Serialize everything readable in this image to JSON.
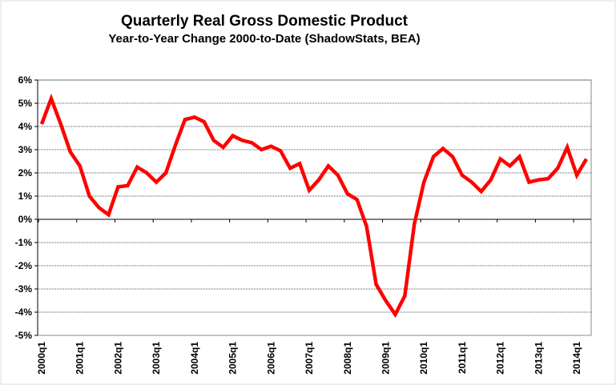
{
  "chart_data": {
    "type": "line",
    "title": "Quarterly Real Gross Domestic Product",
    "subtitle": "Year-to-Year Change 2000-to-Date (ShadowStats, BEA)",
    "xlabel": "",
    "ylabel": "",
    "ylim": [
      -5,
      6
    ],
    "yticks": [
      "-5%",
      "-4%",
      "-3%",
      "-2%",
      "-1%",
      "0%",
      "1%",
      "2%",
      "3%",
      "4%",
      "5%",
      "6%"
    ],
    "xtick_labels": [
      "2000q1",
      "2001q1",
      "2002q1",
      "2003q1",
      "2004q1",
      "2005q1",
      "2006q1",
      "2007q1",
      "2008q1",
      "2009q1",
      "2010q1",
      "2011q1",
      "2012q1",
      "2013q1",
      "2014q1"
    ],
    "grid": true,
    "line_color": "#ff0000",
    "series": [
      {
        "x_start": "2000q1",
        "x_end": "2014q2",
        "values": [
          4.1,
          5.2,
          4.1,
          2.9,
          2.3,
          1.0,
          0.5,
          0.2,
          1.4,
          1.45,
          2.25,
          2.0,
          1.6,
          2.0,
          3.2,
          4.3,
          4.4,
          4.2,
          3.4,
          3.1,
          3.6,
          3.4,
          3.3,
          3.0,
          3.15,
          2.95,
          2.2,
          2.4,
          1.25,
          1.7,
          2.3,
          1.9,
          1.1,
          0.85,
          -0.3,
          -2.8,
          -3.5,
          -4.1,
          -3.3,
          -0.2,
          1.6,
          2.7,
          3.05,
          2.7,
          1.9,
          1.6,
          1.2,
          1.7,
          2.6,
          2.3,
          2.7,
          1.6,
          1.7,
          1.75,
          2.2,
          3.1,
          1.9,
          2.6
        ]
      }
    ]
  }
}
